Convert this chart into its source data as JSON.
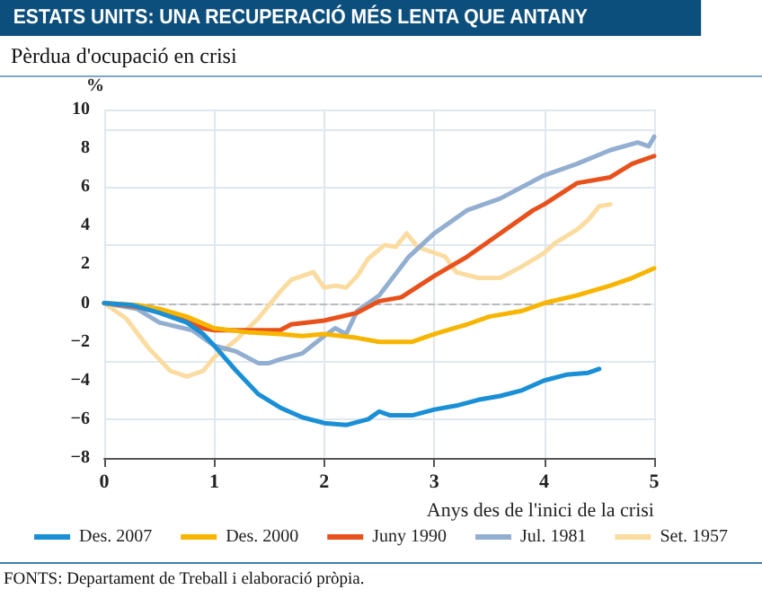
{
  "chart_data": {
    "type": "line",
    "title": "ESTATS UNITS: UNA RECUPERACIÓ MÉS LENTA QUE ANTANY",
    "subtitle": "Pèrdua d'ocupació en crisi",
    "ylabel": "%",
    "xlabel": "Anys des de l'inici de la crisi",
    "annotations": [
      "FONTS: Departament de Treball i elaboració pròpia."
    ],
    "xlim": [
      0,
      5
    ],
    "xticks": [
      0,
      1,
      2,
      3,
      4,
      5
    ],
    "ylim": [
      -8,
      10
    ],
    "yticks": [
      -8,
      -6,
      -4,
      -2,
      0,
      2,
      4,
      6,
      8,
      10
    ],
    "grid": true,
    "legend": "bottom",
    "marker": "none",
    "line_style": "solid",
    "ref_lines": [
      {
        "axis": "y",
        "value": 0,
        "color": "#bbbbbb",
        "line_style": "dashed"
      }
    ],
    "series": [
      {
        "name": "Des. 2007",
        "color": "#1a8fd6",
        "x": [
          0,
          0.25,
          0.5,
          0.75,
          0.9,
          1.0,
          1.2,
          1.4,
          1.6,
          1.8,
          2.0,
          2.2,
          2.4,
          2.5,
          2.6,
          2.8,
          3.0,
          3.2,
          3.4,
          3.6,
          3.8,
          4.0,
          4.2,
          4.4,
          4.5
        ],
        "values": [
          0,
          -0.1,
          -0.5,
          -1.0,
          -1.6,
          -2.2,
          -3.5,
          -4.7,
          -5.4,
          -5.9,
          -6.2,
          -6.3,
          -6.0,
          -5.6,
          -5.8,
          -5.8,
          -5.5,
          -5.3,
          -5.0,
          -4.8,
          -4.5,
          -4.0,
          -3.7,
          -3.6,
          -3.4
        ]
      },
      {
        "name": "Des. 2000",
        "color": "#f7b500",
        "x": [
          0,
          0.3,
          0.5,
          0.75,
          1.0,
          1.3,
          1.6,
          1.8,
          2.0,
          2.3,
          2.5,
          2.8,
          3.0,
          3.3,
          3.5,
          3.8,
          4.0,
          4.3,
          4.6,
          4.8,
          5.0
        ],
        "values": [
          0,
          -0.1,
          -0.3,
          -0.7,
          -1.3,
          -1.5,
          -1.6,
          -1.7,
          -1.6,
          -1.8,
          -2.0,
          -2.0,
          -1.6,
          -1.1,
          -0.7,
          -0.4,
          0,
          0.4,
          0.9,
          1.3,
          1.8
        ]
      },
      {
        "name": "Juny 1990",
        "color": "#e8511c",
        "x": [
          0,
          0.3,
          0.6,
          0.9,
          1.0,
          1.3,
          1.6,
          1.7,
          2.0,
          2.3,
          2.5,
          2.7,
          3.0,
          3.3,
          3.6,
          3.9,
          4.0,
          4.3,
          4.6,
          4.8,
          5.0
        ],
        "values": [
          0,
          -0.2,
          -0.6,
          -1.3,
          -1.4,
          -1.4,
          -1.4,
          -1.1,
          -0.9,
          -0.5,
          0.1,
          0.3,
          1.4,
          2.4,
          3.6,
          4.8,
          5.1,
          6.2,
          6.5,
          7.2,
          7.6
        ]
      },
      {
        "name": "Jul. 1981",
        "color": "#92aed0",
        "x": [
          0,
          0.3,
          0.5,
          0.8,
          1.0,
          1.2,
          1.4,
          1.5,
          1.6,
          1.8,
          2.0,
          2.1,
          2.2,
          2.3,
          2.5,
          2.77,
          3.0,
          3.3,
          3.6,
          4.0,
          4.3,
          4.6,
          4.85,
          4.95,
          5.0
        ],
        "values": [
          0,
          -0.3,
          -1.0,
          -1.4,
          -2.2,
          -2.5,
          -3.1,
          -3.1,
          -2.9,
          -2.6,
          -1.7,
          -1.3,
          -1.6,
          -0.4,
          0.4,
          2.4,
          3.6,
          4.8,
          5.4,
          6.6,
          7.2,
          7.9,
          8.3,
          8.1,
          8.6
        ]
      },
      {
        "name": "Set. 1957",
        "color": "#fbdca0",
        "x": [
          0,
          0.2,
          0.4,
          0.6,
          0.75,
          0.9,
          1.0,
          1.2,
          1.4,
          1.6,
          1.7,
          1.9,
          2.0,
          2.1,
          2.2,
          2.3,
          2.4,
          2.55,
          2.65,
          2.75,
          2.85,
          3.0,
          3.1,
          3.2,
          3.4,
          3.6,
          3.8,
          4.0,
          4.1,
          4.3,
          4.4,
          4.5,
          4.6
        ],
        "values": [
          0,
          -0.8,
          -2.3,
          -3.5,
          -3.8,
          -3.5,
          -2.8,
          -1.9,
          -0.8,
          0.6,
          1.2,
          1.6,
          0.8,
          0.9,
          0.8,
          1.4,
          2.3,
          3.0,
          2.9,
          3.6,
          2.9,
          2.6,
          2.4,
          1.6,
          1.3,
          1.3,
          1.9,
          2.6,
          3.1,
          3.8,
          4.3,
          5.0,
          5.1
        ]
      }
    ]
  }
}
